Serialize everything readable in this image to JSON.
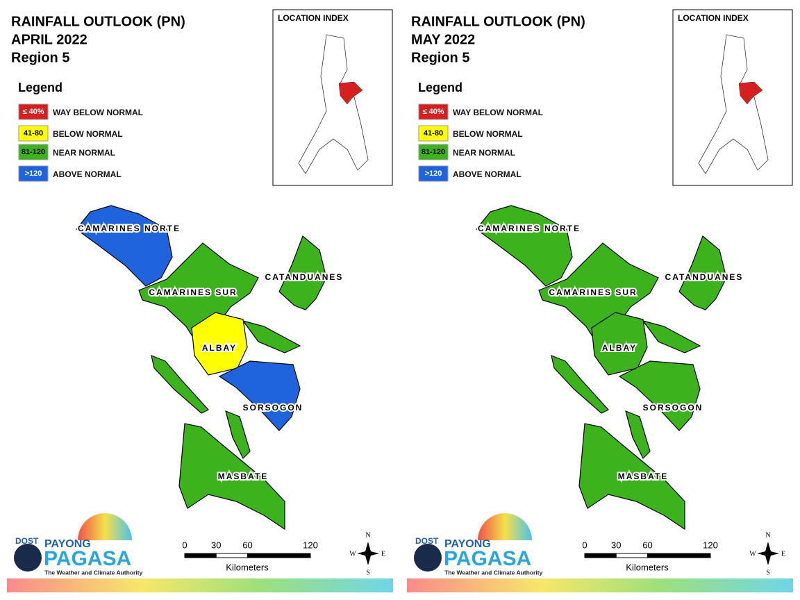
{
  "panels": [
    {
      "title": [
        "RAINFALL OUTLOOK (PN)",
        "APRIL 2022",
        "Region 5"
      ],
      "legend": {
        "title": "Legend",
        "items": [
          {
            "range": "≤ 40%",
            "label": "WAY BELOW NORMAL",
            "color": "#d71f1f"
          },
          {
            "range": "41-80",
            "label": "BELOW NORMAL",
            "color": "#ffff00"
          },
          {
            "range": "81-120",
            "label": "NEAR NORMAL",
            "color": "#3cb21c"
          },
          {
            "range": ">120",
            "label": "ABOVE NORMAL",
            "color": "#1f64dc"
          }
        ]
      },
      "location_index": "LOCATION INDEX",
      "provinces": [
        {
          "name": "CAMARINES NORTE",
          "color": "#1f64dc"
        },
        {
          "name": "CAMARINES SUR",
          "color": "#3cb21c"
        },
        {
          "name": "CATANDUANES",
          "color": "#3cb21c"
        },
        {
          "name": "ALBAY",
          "color": "#ffff00"
        },
        {
          "name": "SORSOGON",
          "color": "#1f64dc"
        },
        {
          "name": "MASBATE",
          "color": "#3cb21c"
        }
      ],
      "scale": {
        "ticks": [
          0,
          30,
          60,
          120
        ],
        "unit": "Kilometers"
      },
      "compass": {
        "n": "N",
        "e": "E",
        "s": "S",
        "w": "W"
      },
      "logo": {
        "dost": "DOST",
        "payong": "PAYONG",
        "pagasa": "PAGASA",
        "tagline": "The Weather and Climate Authority"
      }
    },
    {
      "title": [
        "RAINFALL OUTLOOK (PN)",
        "MAY 2022",
        "Region 5"
      ],
      "legend": {
        "title": "Legend",
        "items": [
          {
            "range": "≤ 40%",
            "label": "WAY BELOW NORMAL",
            "color": "#d71f1f"
          },
          {
            "range": "41-80",
            "label": "BELOW NORMAL",
            "color": "#ffff00"
          },
          {
            "range": "81-120",
            "label": "NEAR NORMAL",
            "color": "#3cb21c"
          },
          {
            "range": ">120",
            "label": "ABOVE NORMAL",
            "color": "#1f64dc"
          }
        ]
      },
      "location_index": "LOCATION INDEX",
      "provinces": [
        {
          "name": "CAMARINES NORTE",
          "color": "#3cb21c"
        },
        {
          "name": "CAMARINES SUR",
          "color": "#3cb21c"
        },
        {
          "name": "CATANDUANES",
          "color": "#3cb21c"
        },
        {
          "name": "ALBAY",
          "color": "#3cb21c"
        },
        {
          "name": "SORSOGON",
          "color": "#3cb21c"
        },
        {
          "name": "MASBATE",
          "color": "#3cb21c"
        }
      ],
      "scale": {
        "ticks": [
          0,
          30,
          60,
          120
        ],
        "unit": "Kilometers"
      },
      "compass": {
        "n": "N",
        "e": "E",
        "s": "S",
        "w": "W"
      },
      "logo": {
        "dost": "DOST",
        "payong": "PAYONG",
        "pagasa": "PAGASA",
        "tagline": "The Weather and Climate Authority"
      }
    }
  ]
}
